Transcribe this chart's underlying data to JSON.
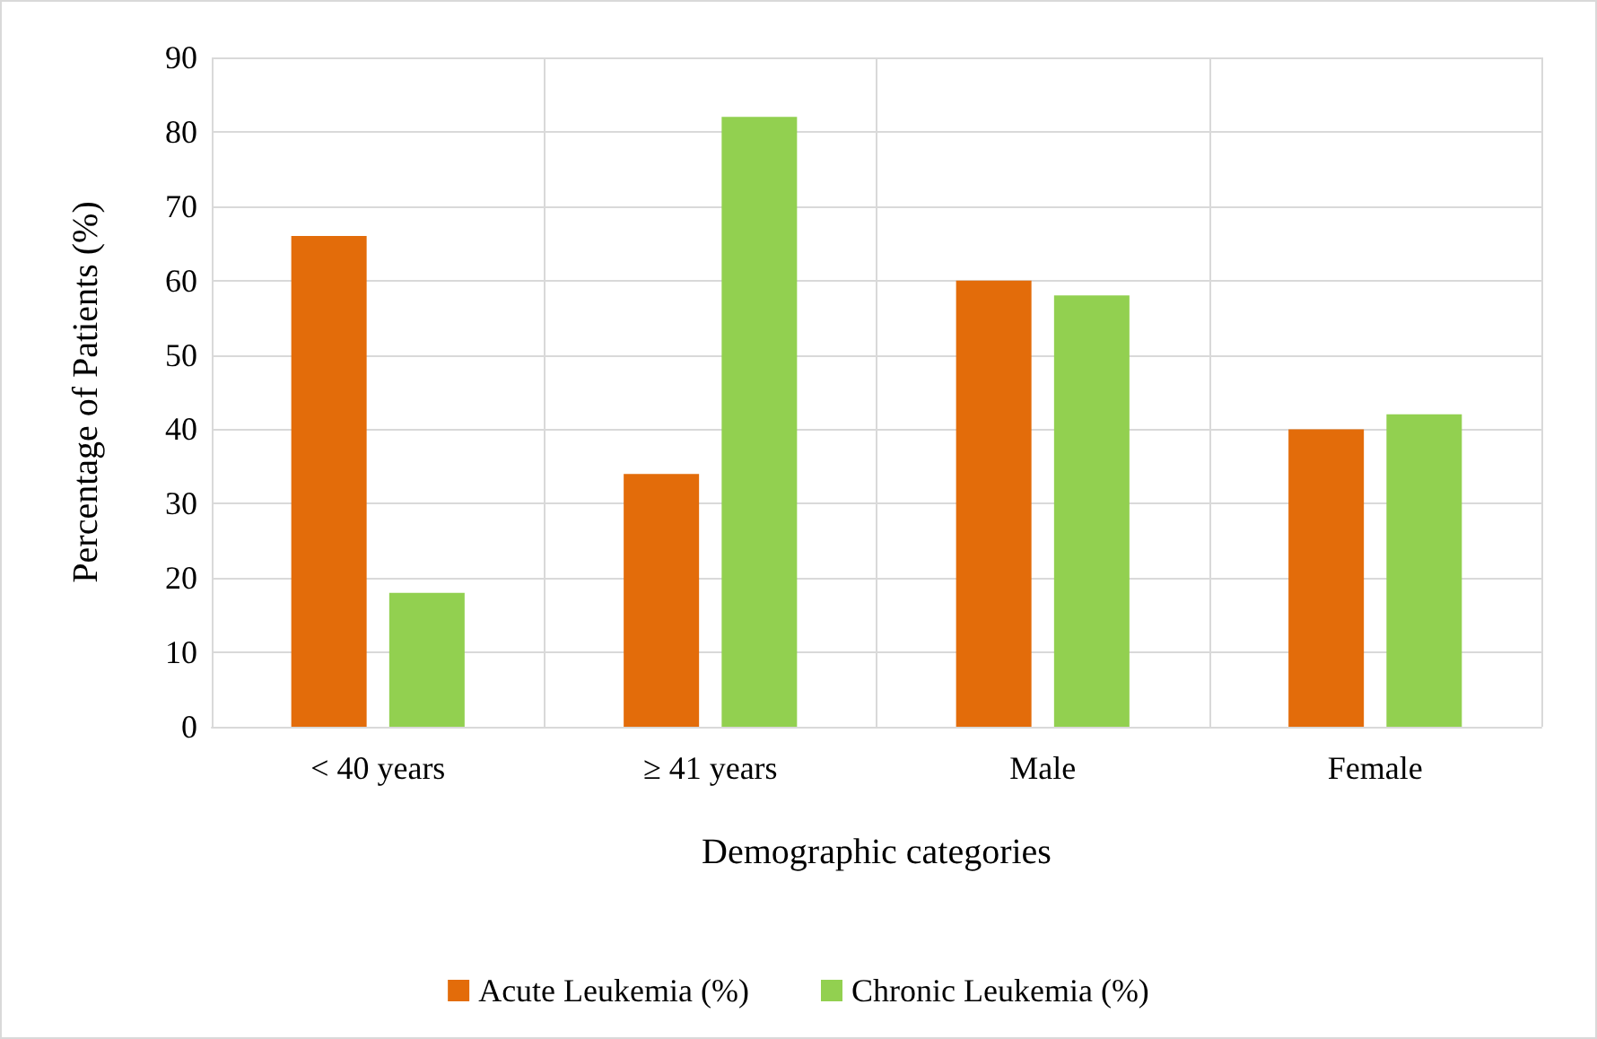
{
  "chart_data": {
    "type": "bar",
    "xlabel": "Demographic categories",
    "ylabel": "Percentage of Patients (%)",
    "categories": [
      "< 40 years",
      "≥ 41 years",
      "Male",
      "Female"
    ],
    "series": [
      {
        "name": "Acute Leukemia (%)",
        "color": "#e36c0a",
        "values": [
          66,
          34,
          60,
          40
        ]
      },
      {
        "name": "Chronic Leukemia (%)",
        "color": "#92d050",
        "values": [
          18,
          82,
          58,
          42
        ]
      }
    ],
    "ylim": [
      0,
      90
    ],
    "yticks": [
      0,
      10,
      20,
      30,
      40,
      50,
      60,
      70,
      80,
      90
    ],
    "grid": true,
    "legend": "bottom"
  }
}
